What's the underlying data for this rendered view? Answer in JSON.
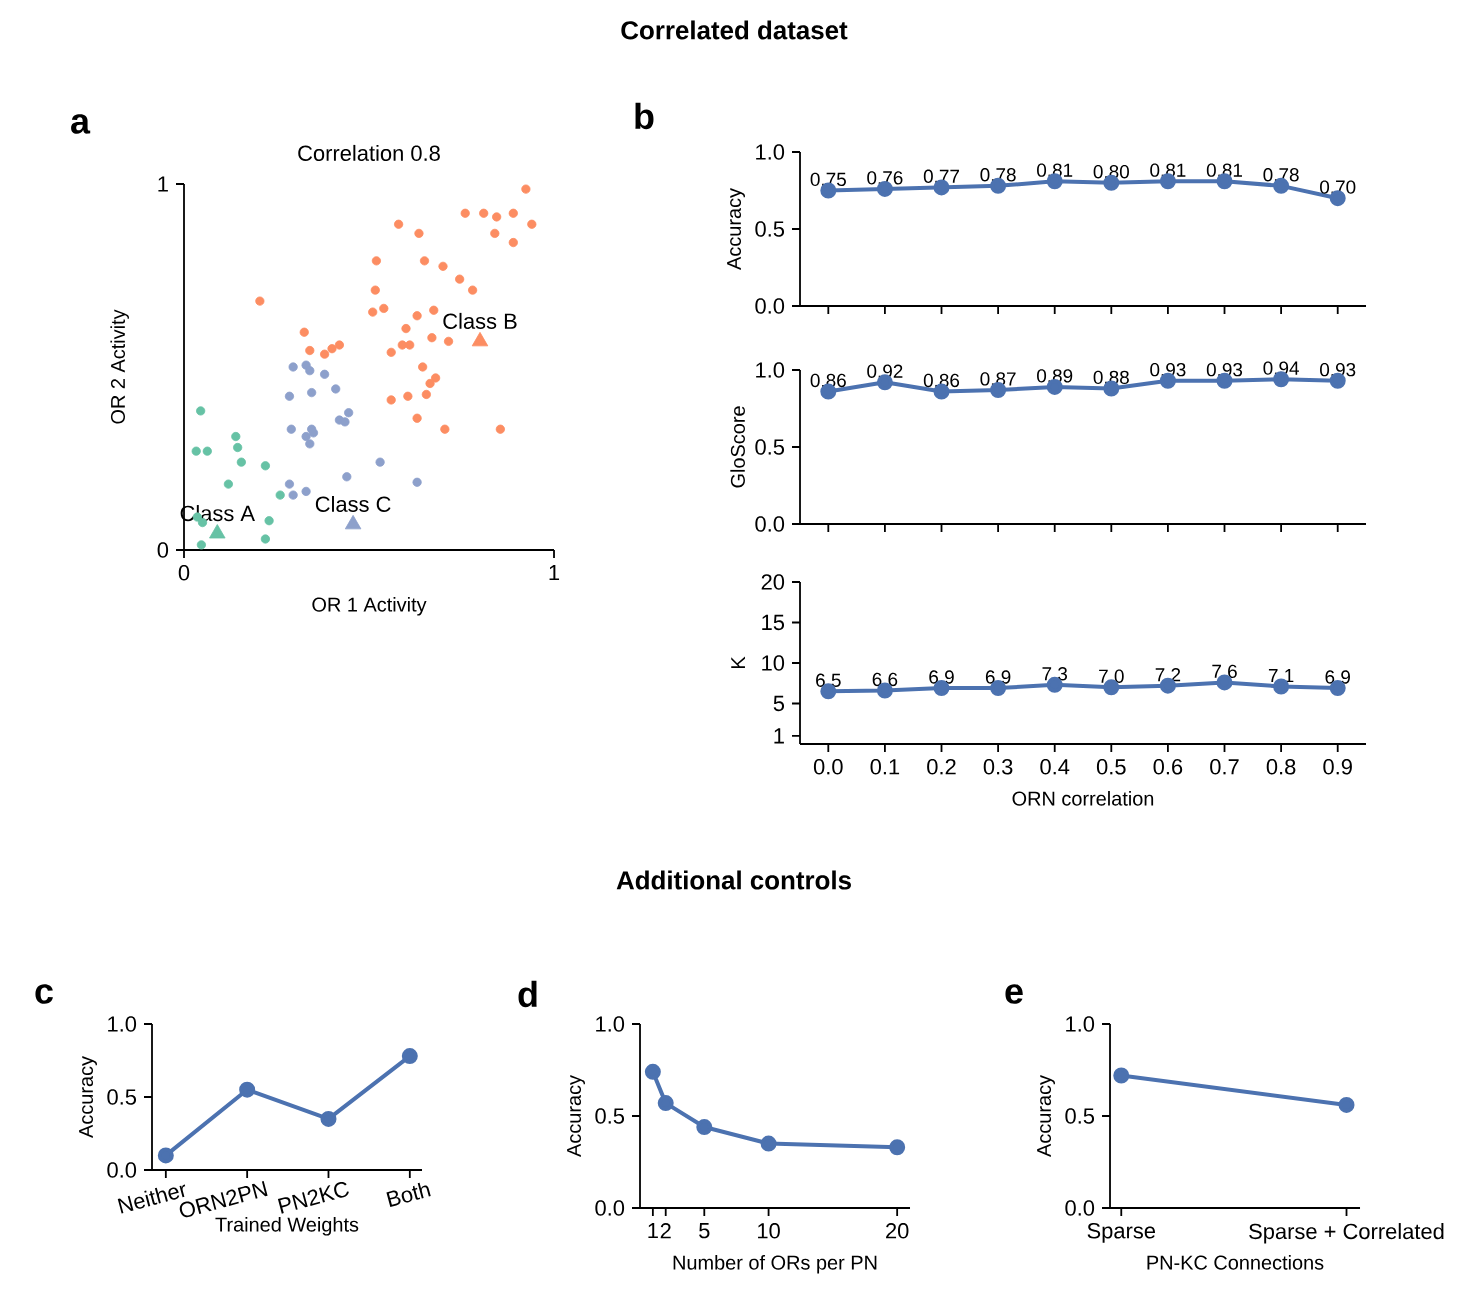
{
  "chart_data": [
    {
      "type": "scatter",
      "title": "Correlation 0.8",
      "xlabel": "OR 1 Activity",
      "ylabel": "OR 2 Activity",
      "xlim": [
        0,
        1
      ],
      "ylim": [
        0,
        1
      ],
      "xticks": [
        0,
        1
      ],
      "yticks": [
        0,
        1
      ],
      "annotations": [
        "Correlated dataset",
        "a",
        {
          "text": "Class A",
          "x": 0.09,
          "y": 0.045
        },
        {
          "text": "Class B",
          "x": 0.8,
          "y": 0.57
        },
        {
          "text": "Class C",
          "x": 0.457,
          "y": 0.07
        }
      ],
      "series": [
        {
          "color": "#66c2a5",
          "marker": "circle",
          "x": [
            0.045,
            0.033,
            0.063,
            0.14,
            0.145,
            0.155,
            0.22,
            0.12,
            0.26,
            0.23,
            0.036,
            0.05,
            0.047,
            0.22
          ],
          "values": [
            0.38,
            0.27,
            0.27,
            0.31,
            0.28,
            0.24,
            0.23,
            0.18,
            0.15,
            0.08,
            0.09,
            0.075,
            0.014,
            0.03
          ]
        },
        {
          "color": "#fc8d62",
          "marker": "circle",
          "x": [
            0.924,
            0.76,
            0.81,
            0.845,
            0.89,
            0.94,
            0.58,
            0.635,
            0.84,
            0.89,
            0.52,
            0.65,
            0.7,
            0.745,
            0.78,
            0.517,
            0.54,
            0.51,
            0.63,
            0.675,
            0.6,
            0.56,
            0.59,
            0.61,
            0.67,
            0.715,
            0.325,
            0.34,
            0.38,
            0.4,
            0.42,
            0.205,
            0.645,
            0.68,
            0.665,
            0.605,
            0.655,
            0.56,
            0.63,
            0.705,
            0.855
          ],
          "values": [
            0.986,
            0.92,
            0.92,
            0.91,
            0.92,
            0.89,
            0.89,
            0.865,
            0.865,
            0.84,
            0.79,
            0.79,
            0.775,
            0.74,
            0.71,
            0.71,
            0.66,
            0.65,
            0.64,
            0.655,
            0.605,
            0.54,
            0.56,
            0.56,
            0.58,
            0.57,
            0.595,
            0.545,
            0.535,
            0.55,
            0.56,
            0.68,
            0.5,
            0.47,
            0.455,
            0.42,
            0.425,
            0.41,
            0.36,
            0.33,
            0.33
          ]
        },
        {
          "color": "#8da0cb",
          "marker": "circle",
          "x": [
            0.295,
            0.33,
            0.34,
            0.38,
            0.41,
            0.285,
            0.345,
            0.29,
            0.345,
            0.33,
            0.35,
            0.34,
            0.42,
            0.435,
            0.445,
            0.53,
            0.44,
            0.285,
            0.295,
            0.33,
            0.63
          ],
          "values": [
            0.5,
            0.505,
            0.49,
            0.48,
            0.44,
            0.42,
            0.43,
            0.33,
            0.33,
            0.31,
            0.32,
            0.29,
            0.355,
            0.35,
            0.375,
            0.24,
            0.2,
            0.18,
            0.15,
            0.16,
            0.185
          ]
        },
        {
          "color": "#66c2a5",
          "marker": "triangle",
          "x": [
            0.09
          ],
          "values": [
            0.045
          ]
        },
        {
          "color": "#fc8d62",
          "marker": "triangle",
          "x": [
            0.8
          ],
          "values": [
            0.57
          ]
        },
        {
          "color": "#8da0cb",
          "marker": "triangle",
          "x": [
            0.457
          ],
          "values": [
            0.07
          ]
        }
      ]
    },
    {
      "type": "line",
      "ylabel": "Accuracy",
      "color": "#4c72b0",
      "marker": "circle",
      "tick_labels": "y",
      "annotations": [
        "b"
      ],
      "x": [
        0,
        0.1,
        0.2,
        0.3,
        0.4,
        0.5,
        0.6,
        0.7,
        0.8,
        0.9
      ],
      "values": [
        0.75,
        0.76,
        0.77,
        0.78,
        0.81,
        0.8,
        0.81,
        0.81,
        0.78,
        0.7
      ],
      "value_labels": [
        "0.75",
        "0.76",
        "0.77",
        "0.78",
        "0.81",
        "0.80",
        "0.81",
        "0.81",
        "0.78",
        "0.70"
      ],
      "xlim": [
        -0.05,
        0.95
      ],
      "ylim": [
        0,
        1
      ],
      "xticks": [
        0,
        0.1,
        0.2,
        0.3,
        0.4,
        0.5,
        0.6,
        0.7,
        0.8,
        0.9
      ],
      "yticks": [
        {
          "value": 0,
          "label": "0.0"
        },
        {
          "value": 0.5,
          "label": "0.5"
        },
        {
          "value": 1,
          "label": "1.0"
        }
      ]
    },
    {
      "type": "line",
      "ylabel": "GloScore",
      "color": "#4c72b0",
      "marker": "circle",
      "tick_labels": "y",
      "x": [
        0,
        0.1,
        0.2,
        0.3,
        0.4,
        0.5,
        0.6,
        0.7,
        0.8,
        0.9
      ],
      "values": [
        0.86,
        0.92,
        0.86,
        0.87,
        0.89,
        0.88,
        0.93,
        0.93,
        0.94,
        0.93
      ],
      "value_labels": [
        "0.86",
        "0.92",
        "0.86",
        "0.87",
        "0.89",
        "0.88",
        "0.93",
        "0.93",
        "0.94",
        "0.93"
      ],
      "xlim": [
        -0.05,
        0.95
      ],
      "ylim": [
        0,
        1
      ],
      "xticks": [
        0,
        0.1,
        0.2,
        0.3,
        0.4,
        0.5,
        0.6,
        0.7,
        0.8,
        0.9
      ],
      "yticks": [
        {
          "value": 0,
          "label": "0.0"
        },
        {
          "value": 0.5,
          "label": "0.5"
        },
        {
          "value": 1,
          "label": "1.0"
        }
      ]
    },
    {
      "type": "line",
      "ylabel": "K",
      "xlabel": "ORN correlation",
      "color": "#4c72b0",
      "marker": "circle",
      "x": [
        0,
        0.1,
        0.2,
        0.3,
        0.4,
        0.5,
        0.6,
        0.7,
        0.8,
        0.9
      ],
      "values": [
        6.5,
        6.6,
        6.9,
        6.9,
        7.3,
        7.0,
        7.2,
        7.6,
        7.1,
        6.9
      ],
      "value_labels": [
        "6.5",
        "6.6",
        "6.9",
        "6.9",
        "7.3",
        "7.0",
        "7.2",
        "7.6",
        "7.1",
        "6.9"
      ],
      "xlim": [
        -0.05,
        0.95
      ],
      "ylim": [
        0,
        20
      ],
      "xticks": [
        {
          "value": 0,
          "label": "0.0"
        },
        {
          "value": 0.1,
          "label": "0.1"
        },
        {
          "value": 0.2,
          "label": "0.2"
        },
        {
          "value": 0.3,
          "label": "0.3"
        },
        {
          "value": 0.4,
          "label": "0.4"
        },
        {
          "value": 0.5,
          "label": "0.5"
        },
        {
          "value": 0.6,
          "label": "0.6"
        },
        {
          "value": 0.7,
          "label": "0.7"
        },
        {
          "value": 0.8,
          "label": "0.8"
        },
        {
          "value": 0.9,
          "label": "0.9"
        }
      ],
      "yticks": [
        1,
        5,
        10,
        15,
        20
      ]
    },
    {
      "type": "line",
      "ylabel": "Accuracy",
      "xlabel": "Trained Weights",
      "color": "#4c72b0",
      "marker": "circle",
      "annotations": [
        "Additional controls",
        "c"
      ],
      "categories": [
        "Neither",
        "ORN2PN",
        "PN2KC",
        "Both"
      ],
      "values": [
        0.1,
        0.55,
        0.35,
        0.78
      ],
      "ylim": [
        0,
        1
      ],
      "yticks": [
        {
          "value": 0,
          "label": "0.0"
        },
        {
          "value": 0.5,
          "label": "0.5"
        },
        {
          "value": 1,
          "label": "1.0"
        }
      ]
    },
    {
      "type": "line",
      "ylabel": "Accuracy",
      "xlabel": "Number of ORs per PN",
      "color": "#4c72b0",
      "marker": "circle",
      "annotations": [
        "d"
      ],
      "x": [
        1,
        2,
        5,
        10,
        20
      ],
      "values": [
        0.74,
        0.57,
        0.44,
        0.35,
        0.33
      ],
      "xlim": [
        0,
        21
      ],
      "xticks": [
        1,
        2,
        5,
        10,
        20
      ],
      "ylim": [
        0,
        1
      ],
      "yticks": [
        {
          "value": 0,
          "label": "0.0"
        },
        {
          "value": 0.5,
          "label": "0.5"
        },
        {
          "value": 1,
          "label": "1.0"
        }
      ]
    },
    {
      "type": "line",
      "ylabel": "Accuracy",
      "xlabel": "PN-KC Connections",
      "color": "#4c72b0",
      "marker": "circle",
      "annotations": [
        "e"
      ],
      "categories": [
        "Sparse",
        "Sparse + Correlated"
      ],
      "values": [
        0.72,
        0.56
      ],
      "ylim": [
        0,
        1
      ],
      "yticks": [
        {
          "value": 0,
          "label": "0.0"
        },
        {
          "value": 0.5,
          "label": "0.5"
        },
        {
          "value": 1,
          "label": "1.0"
        }
      ]
    }
  ]
}
